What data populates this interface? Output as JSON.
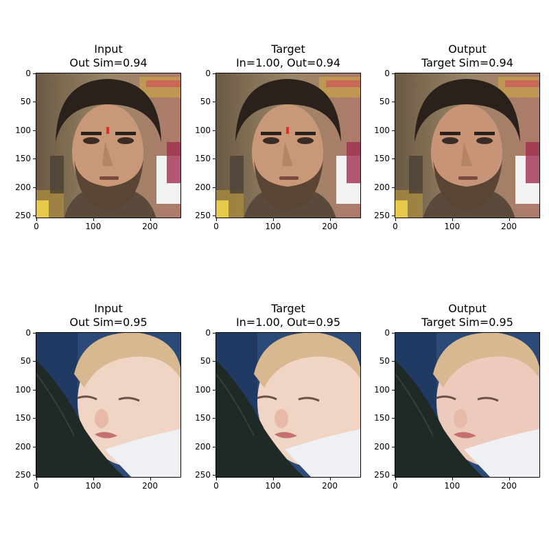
{
  "rows": [
    {
      "panels": [
        {
          "title_line1": "Input",
          "title_line2": "Out Sim=0.94",
          "subject": "man-face-photo"
        },
        {
          "title_line1": "Target",
          "title_line2": "In=1.00, Out=0.94",
          "subject": "man-face-photo"
        },
        {
          "title_line1": "Output",
          "title_line2": "Target Sim=0.94",
          "subject": "man-face-photo-generated"
        }
      ]
    },
    {
      "panels": [
        {
          "title_line1": "Input",
          "title_line2": "Out Sim=0.95",
          "subject": "baby-face-photo"
        },
        {
          "title_line1": "Target",
          "title_line2": "In=1.00, Out=0.95",
          "subject": "baby-face-photo"
        },
        {
          "title_line1": "Output",
          "title_line2": "Target Sim=0.95",
          "subject": "baby-face-photo-generated"
        }
      ]
    }
  ],
  "yticks": [
    "0",
    "50",
    "100",
    "150",
    "200",
    "250"
  ],
  "xticks": [
    "0",
    "100",
    "200"
  ],
  "colors": {
    "man_bg": "#8a7a60",
    "man_hair": "#2a211c",
    "man_skin": "#c99878",
    "man_beard": "#5a4434",
    "baby_bg": "#2c4a78",
    "baby_skin": "#f0d4c4",
    "baby_hair": "#d8b890",
    "baby_carrier": "#1f2a26",
    "baby_shirt": "#eef0f4"
  }
}
